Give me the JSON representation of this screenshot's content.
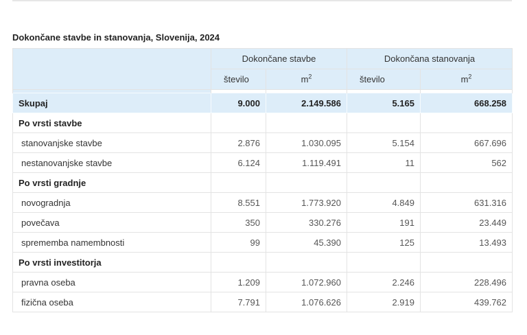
{
  "caption": "Dokončane stavbe in stanovanja, Slovenija, 2024",
  "header": {
    "group1": "Dokončane stavbe",
    "group2": "Dokončana stanovanja",
    "col_stevilo": "število",
    "col_m": "m",
    "col_m_sup": "2"
  },
  "rows": {
    "total": {
      "label": "Skupaj",
      "v": [
        "9.000",
        "2.149.586",
        "5.165",
        "668.258"
      ]
    },
    "sec1": "Po vrsti stavbe",
    "r1": {
      "label": "stanovanjske stavbe",
      "v": [
        "2.876",
        "1.030.095",
        "5.154",
        "667.696"
      ]
    },
    "r2": {
      "label": "nestanovanjske stavbe",
      "v": [
        "6.124",
        "1.119.491",
        "11",
        "562"
      ]
    },
    "sec2": "Po vrsti gradnje",
    "r3": {
      "label": "novogradnja",
      "v": [
        "8.551",
        "1.773.920",
        "4.849",
        "631.316"
      ]
    },
    "r4": {
      "label": "povečava",
      "v": [
        "350",
        "330.276",
        "191",
        "23.449"
      ]
    },
    "r5": {
      "label": "sprememba namembnosti",
      "v": [
        "99",
        "45.390",
        "125",
        "13.493"
      ]
    },
    "sec3": "Po vrsti investitorja",
    "r6": {
      "label": "pravna oseba",
      "v": [
        "1.209",
        "1.072.960",
        "2.246",
        "228.496"
      ]
    },
    "r7": {
      "label": "fizična oseba",
      "v": [
        "7.791",
        "1.076.626",
        "2.919",
        "439.762"
      ]
    }
  }
}
